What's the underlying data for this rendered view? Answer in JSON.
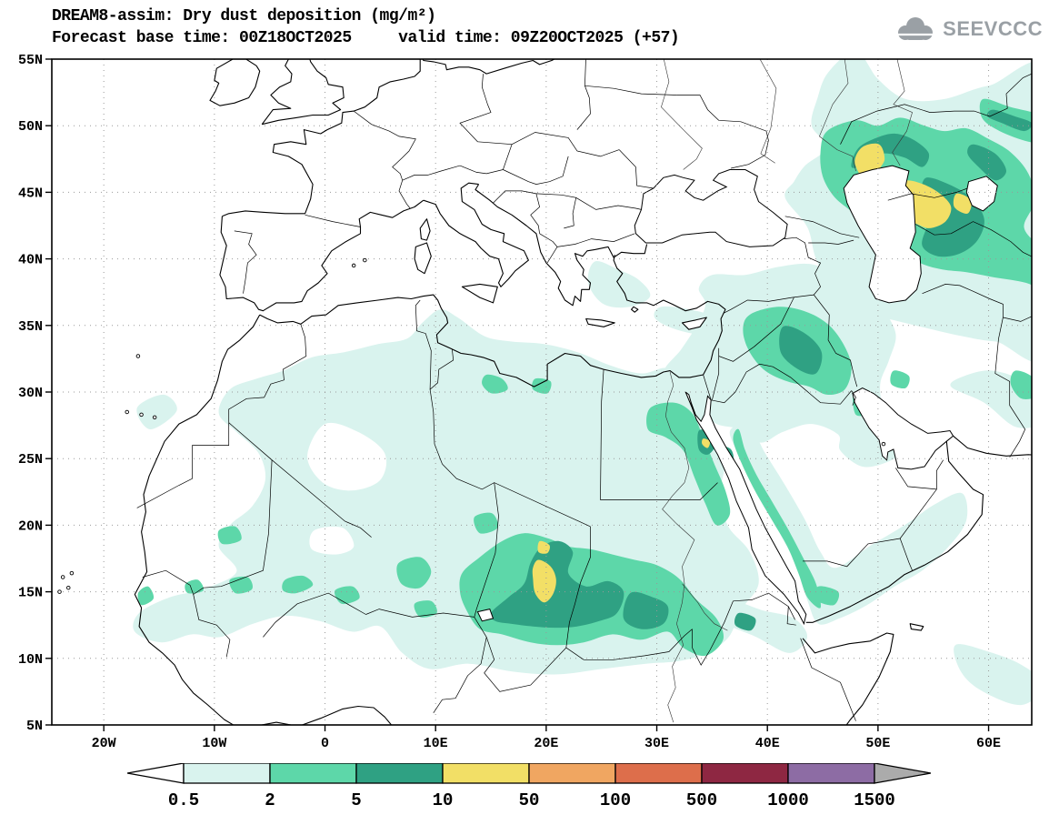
{
  "header": {
    "title_line1": "DREAM8-assim: Dry dust deposition (mg/m²)",
    "title_line2": "Forecast base time: 00Z18OCT2025     valid time: 09Z20OCT2025 (+57)",
    "logo_text": "SEEVCCC"
  },
  "map": {
    "lat_labels": [
      "55N",
      "50N",
      "45N",
      "40N",
      "35N",
      "30N",
      "25N",
      "20N",
      "15N",
      "10N",
      "5N"
    ],
    "lon_labels": [
      "20W",
      "10W",
      "0",
      "10E",
      "20E",
      "30E",
      "40E",
      "50E",
      "60E"
    ]
  },
  "legend": {
    "values": [
      "0.5",
      "2",
      "5",
      "10",
      "50",
      "100",
      "500",
      "1000",
      "1500"
    ],
    "segment_colors": [
      "#d9f3ee",
      "#5dd7a9",
      "#2fa183",
      "#f2df66",
      "#f0a661",
      "#dd6e4b",
      "#8e2742",
      "#8d6ca4"
    ],
    "below_color": "#ffffff",
    "above_color": "#ababab"
  }
}
